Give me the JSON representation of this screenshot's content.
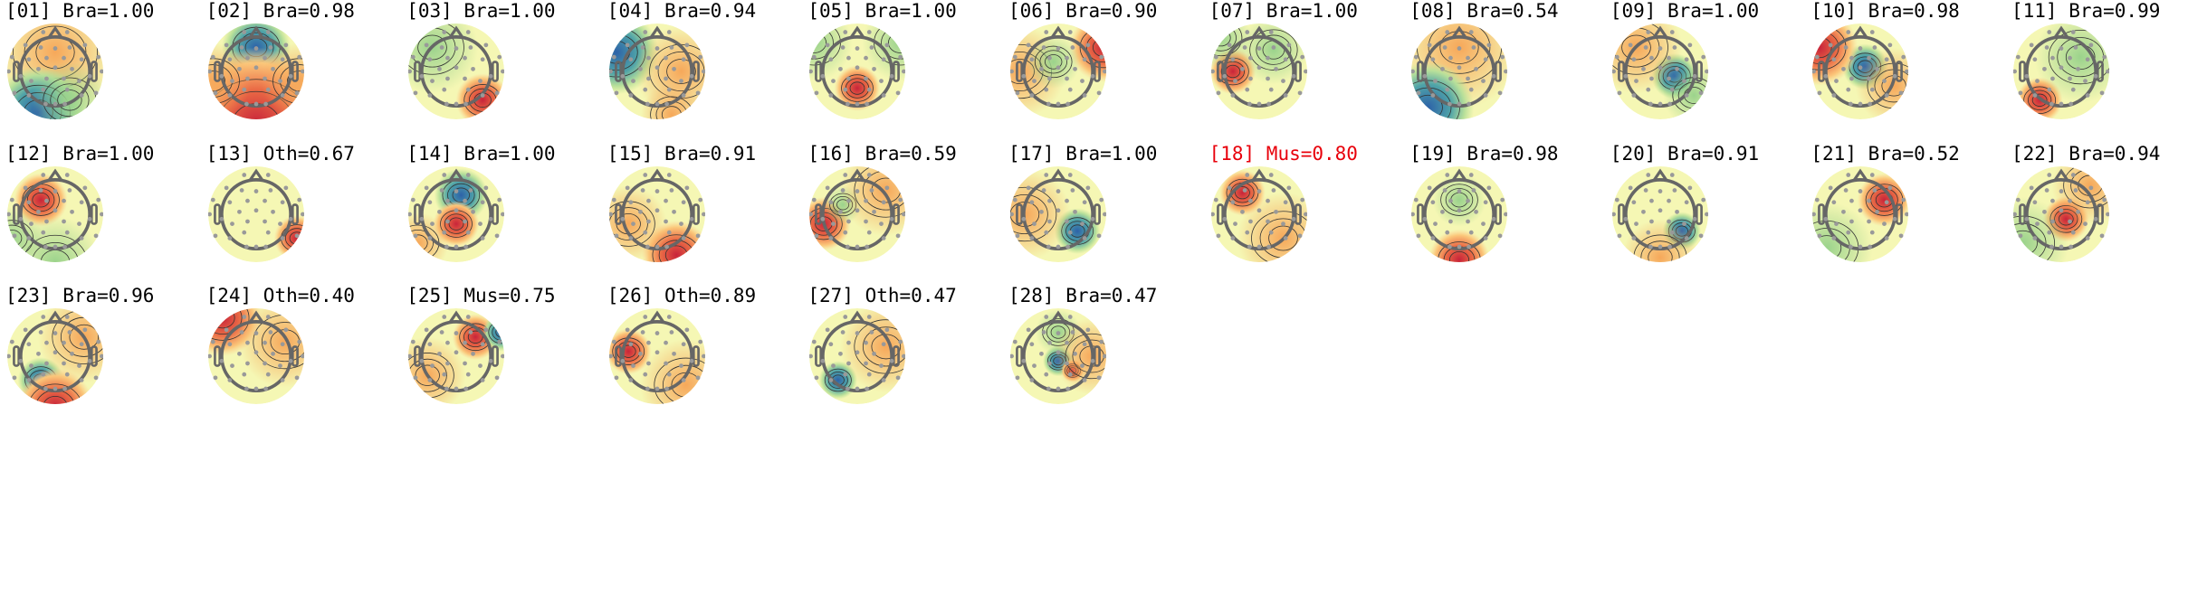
{
  "colors": {
    "label_default": "#000000",
    "label_flagged": "#e8000b",
    "colormap": [
      "#2c4fa8",
      "#5fb8a6",
      "#c6e59a",
      "#f7f7b5",
      "#fbc77a",
      "#e0503a",
      "#b3122e"
    ]
  },
  "components": [
    {
      "label": "[01] Bra=1.00"
    },
    {
      "label": "[02] Bra=0.98"
    },
    {
      "label": "[03] Bra=1.00"
    },
    {
      "label": "[04] Bra=0.94"
    },
    {
      "label": "[05] Bra=1.00"
    },
    {
      "label": "[06] Bra=0.90"
    },
    {
      "label": "[07] Bra=1.00"
    },
    {
      "label": "[08] Bra=0.54"
    },
    {
      "label": "[09] Bra=1.00"
    },
    {
      "label": "[10] Bra=0.98"
    },
    {
      "label": "[11] Bra=0.99"
    },
    {
      "label": "[12] Bra=1.00"
    },
    {
      "label": "[13] Oth=0.67"
    },
    {
      "label": "[14] Bra=1.00"
    },
    {
      "label": "[15] Bra=0.91"
    },
    {
      "label": "[16] Bra=0.59"
    },
    {
      "label": "[17] Bra=1.00"
    },
    {
      "label": "[18] Mus=0.80",
      "flagged": true
    },
    {
      "label": "[19] Bra=0.98"
    },
    {
      "label": "[20] Bra=0.91"
    },
    {
      "label": "[21] Bra=0.52"
    },
    {
      "label": "[22] Bra=0.94"
    },
    {
      "label": "[23] Bra=0.96"
    },
    {
      "label": "[24] Oth=0.40"
    },
    {
      "label": "[25] Mus=0.75"
    },
    {
      "label": "[26] Oth=0.89"
    },
    {
      "label": "[27] Oth=0.47"
    },
    {
      "label": "[28] Bra=0.47"
    }
  ]
}
